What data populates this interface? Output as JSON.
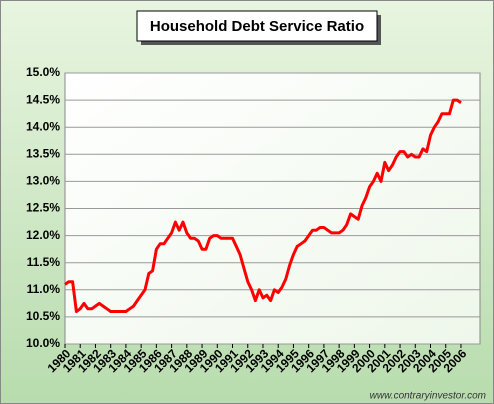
{
  "chart_data": {
    "type": "line",
    "title": "Household Debt Service Ratio",
    "source": "www.contraryinvestor.com",
    "grid": true,
    "xlim": [
      1980,
      2007.25
    ],
    "xticks": [
      1980,
      1981,
      1982,
      1983,
      1984,
      1985,
      1986,
      1987,
      1988,
      1989,
      1990,
      1991,
      1992,
      1993,
      1994,
      1995,
      1996,
      1997,
      1998,
      1999,
      2000,
      2001,
      2002,
      2003,
      2004,
      2005,
      2006
    ],
    "ylim": [
      10,
      15
    ],
    "yticks": [
      {
        "value": 10,
        "label": "10.0%"
      },
      {
        "value": 10.5,
        "label": "10.5%"
      },
      {
        "value": 11,
        "label": "11.0%"
      },
      {
        "value": 11.5,
        "label": "11.5%"
      },
      {
        "value": 12,
        "label": "12.0%"
      },
      {
        "value": 12.5,
        "label": "12.5%"
      },
      {
        "value": 13,
        "label": "13.0%"
      },
      {
        "value": 13.5,
        "label": "13.5%"
      },
      {
        "value": 14,
        "label": "14.0%"
      },
      {
        "value": 14.5,
        "label": "14.5%"
      },
      {
        "value": 15,
        "label": "15.0%"
      }
    ],
    "x": [
      1980,
      1980.25,
      1980.5,
      1980.75,
      1981,
      1981.25,
      1981.5,
      1981.75,
      1982,
      1982.25,
      1982.5,
      1982.75,
      1983,
      1983.25,
      1983.5,
      1983.75,
      1984,
      1984.25,
      1984.5,
      1984.75,
      1985,
      1985.25,
      1985.5,
      1985.75,
      1986,
      1986.25,
      1986.5,
      1986.75,
      1987,
      1987.25,
      1987.5,
      1987.75,
      1988,
      1988.25,
      1988.5,
      1988.75,
      1989,
      1989.25,
      1989.5,
      1989.75,
      1990,
      1990.25,
      1990.5,
      1990.75,
      1991,
      1991.25,
      1991.5,
      1991.75,
      1992,
      1992.25,
      1992.5,
      1992.75,
      1993,
      1993.25,
      1993.5,
      1993.75,
      1994,
      1994.25,
      1994.5,
      1994.75,
      1995,
      1995.25,
      1995.5,
      1995.75,
      1996,
      1996.25,
      1996.5,
      1996.75,
      1997,
      1997.25,
      1997.5,
      1997.75,
      1998,
      1998.25,
      1998.5,
      1998.75,
      1999,
      1999.25,
      1999.5,
      1999.75,
      2000,
      2000.25,
      2000.5,
      2000.75,
      2001,
      2001.25,
      2001.5,
      2001.75,
      2002,
      2002.25,
      2002.5,
      2002.75,
      2003,
      2003.25,
      2003.5,
      2003.75,
      2004,
      2004.25,
      2004.5,
      2004.75,
      2005,
      2005.25,
      2005.5,
      2005.75,
      2006
    ],
    "series": [
      {
        "color": "#ff0000",
        "values": [
          11.1,
          11.15,
          11.15,
          10.6,
          10.65,
          10.75,
          10.65,
          10.65,
          10.7,
          10.75,
          10.7,
          10.65,
          10.6,
          10.6,
          10.6,
          10.6,
          10.6,
          10.65,
          10.7,
          10.8,
          10.9,
          11.0,
          11.3,
          11.35,
          11.75,
          11.85,
          11.85,
          11.95,
          12.05,
          12.25,
          12.1,
          12.25,
          12.05,
          11.95,
          11.95,
          11.9,
          11.75,
          11.75,
          11.95,
          12.0,
          12.0,
          11.95,
          11.95,
          11.95,
          11.95,
          11.8,
          11.65,
          11.4,
          11.15,
          11.0,
          10.8,
          11.0,
          10.85,
          10.9,
          10.8,
          11.0,
          10.95,
          11.05,
          11.2,
          11.45,
          11.65,
          11.8,
          11.85,
          11.9,
          12.0,
          12.1,
          12.1,
          12.15,
          12.15,
          12.1,
          12.05,
          12.05,
          12.05,
          12.1,
          12.2,
          12.4,
          12.35,
          12.3,
          12.55,
          12.7,
          12.9,
          13.0,
          13.15,
          13.0,
          13.35,
          13.2,
          13.3,
          13.45,
          13.55,
          13.55,
          13.45,
          13.5,
          13.45,
          13.45,
          13.6,
          13.55,
          13.85,
          14.0,
          14.1,
          14.25,
          14.25,
          14.25,
          14.5,
          14.5,
          14.45
        ]
      }
    ]
  }
}
